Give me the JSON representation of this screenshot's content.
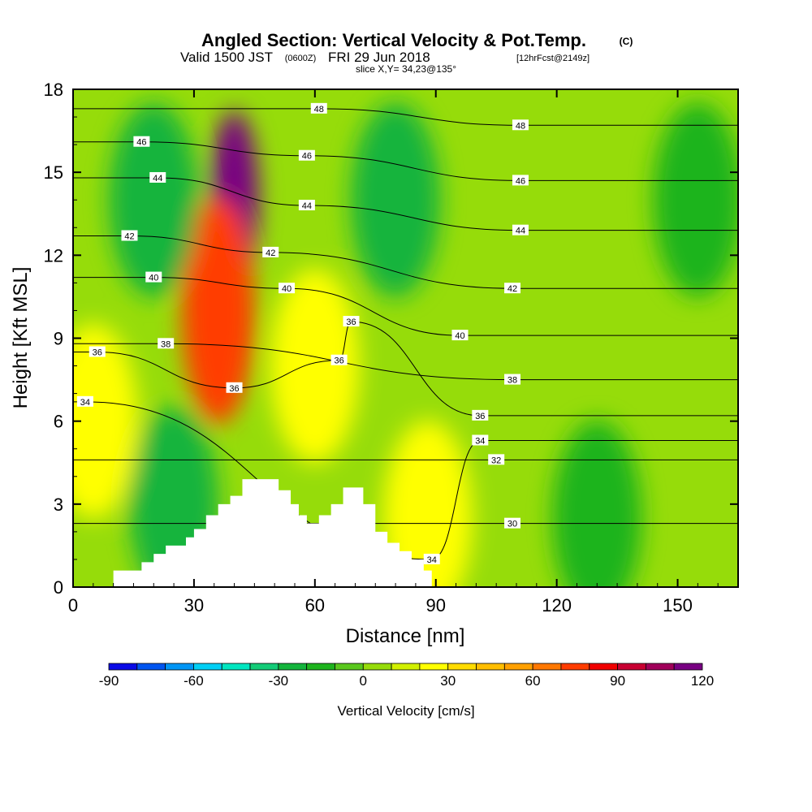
{
  "titles": {
    "main": "Angled Section: Vertical Velocity & Pot.Temp.",
    "main_suffix": "(C)",
    "valid_a": "Valid 1500 JST",
    "valid_b": "(0600Z)",
    "valid_c": "FRI 29 Jun 2018",
    "valid_d": "[12hrFcst@2149z]",
    "slice": "slice X,Y= 34,23@135°"
  },
  "chart_data": {
    "type": "heatmap",
    "xlabel": "Distance [nm]",
    "ylabel": "Height [Kft MSL]",
    "xlim": [
      0,
      165
    ],
    "ylim": [
      0,
      18
    ],
    "x_ticks": [
      "0",
      "30",
      "60",
      "90",
      "120",
      "150"
    ],
    "y_ticks": [
      "0",
      "3",
      "6",
      "9",
      "12",
      "15",
      "18"
    ],
    "colorbar": {
      "label": "Vertical Velocity [cm/s]",
      "min": -90,
      "max": 120,
      "step": 10,
      "tick_labels": [
        "-90",
        "-60",
        "-30",
        "0",
        "30",
        "60",
        "90",
        "120"
      ],
      "colors": [
        "#0a0ae6",
        "#0055f0",
        "#0095f5",
        "#00cff5",
        "#00e6c0",
        "#14cc78",
        "#14b43c",
        "#1eb41e",
        "#5ac81e",
        "#96dc0a",
        "#d2f000",
        "#ffff00",
        "#ffdc00",
        "#ffbe00",
        "#ffa000",
        "#ff7800",
        "#ff3c00",
        "#f00000",
        "#c80032",
        "#a0005a",
        "#780082"
      ]
    },
    "velocity_features": [
      {
        "x": 40,
        "y": 14,
        "value": 120
      },
      {
        "x": 36,
        "y": 10,
        "value": 70
      },
      {
        "x": 60,
        "y": 8,
        "value": 25
      },
      {
        "x": 88,
        "y": 2.5,
        "value": 25
      },
      {
        "x": 5,
        "y": 6,
        "value": 20
      },
      {
        "x": 25,
        "y": 3,
        "value": -30
      },
      {
        "x": 80,
        "y": 14,
        "value": -30
      },
      {
        "x": 20,
        "y": 14,
        "value": -25
      },
      {
        "x": 130,
        "y": 2.5,
        "value": -20
      },
      {
        "x": 155,
        "y": 14,
        "value": -20
      }
    ],
    "theta_contour_labels": [
      {
        "label": "48",
        "x": 61,
        "y": 17.3
      },
      {
        "label": "48",
        "x": 111,
        "y": 16.7
      },
      {
        "label": "46",
        "x": 17,
        "y": 16.1
      },
      {
        "label": "46",
        "x": 58,
        "y": 15.6
      },
      {
        "label": "46",
        "x": 111,
        "y": 14.7
      },
      {
        "label": "44",
        "x": 21,
        "y": 14.8
      },
      {
        "label": "44",
        "x": 58,
        "y": 13.8
      },
      {
        "label": "44",
        "x": 111,
        "y": 12.9
      },
      {
        "label": "42",
        "x": 14,
        "y": 12.7
      },
      {
        "label": "42",
        "x": 49,
        "y": 12.1
      },
      {
        "label": "42",
        "x": 109,
        "y": 10.8
      },
      {
        "label": "40",
        "x": 20,
        "y": 11.2
      },
      {
        "label": "40",
        "x": 53,
        "y": 10.8
      },
      {
        "label": "40",
        "x": 96,
        "y": 9.1
      },
      {
        "label": "38",
        "x": 23,
        "y": 8.8
      },
      {
        "label": "38",
        "x": 109,
        "y": 7.5
      },
      {
        "label": "36",
        "x": 6,
        "y": 8.5
      },
      {
        "label": "36",
        "x": 69,
        "y": 9.6
      },
      {
        "label": "36",
        "x": 66,
        "y": 8.2
      },
      {
        "label": "36",
        "x": 40,
        "y": 7.2
      },
      {
        "label": "36",
        "x": 101,
        "y": 6.2
      },
      {
        "label": "34",
        "x": 3,
        "y": 6.7
      },
      {
        "label": "34",
        "x": 101,
        "y": 5.3
      },
      {
        "label": "34",
        "x": 89,
        "y": 1.0
      },
      {
        "label": "32",
        "x": 105,
        "y": 4.6
      },
      {
        "label": "30",
        "x": 109,
        "y": 2.3
      }
    ],
    "terrain": [
      [
        10,
        0.6
      ],
      [
        17,
        0.9
      ],
      [
        20,
        1.2
      ],
      [
        23,
        1.5
      ],
      [
        28,
        1.8
      ],
      [
        30,
        2.1
      ],
      [
        33,
        2.6
      ],
      [
        36,
        3.0
      ],
      [
        39,
        3.3
      ],
      [
        42,
        3.9
      ],
      [
        48,
        3.9
      ],
      [
        51,
        3.5
      ],
      [
        54,
        3.0
      ],
      [
        56,
        2.6
      ],
      [
        58,
        2.3
      ],
      [
        61,
        2.6
      ],
      [
        64,
        3.0
      ],
      [
        67,
        3.6
      ],
      [
        72,
        3.0
      ],
      [
        75,
        2.0
      ],
      [
        78,
        1.6
      ],
      [
        81,
        1.3
      ],
      [
        84,
        1.0
      ],
      [
        87,
        0.6
      ],
      [
        89,
        0.3
      ]
    ]
  }
}
